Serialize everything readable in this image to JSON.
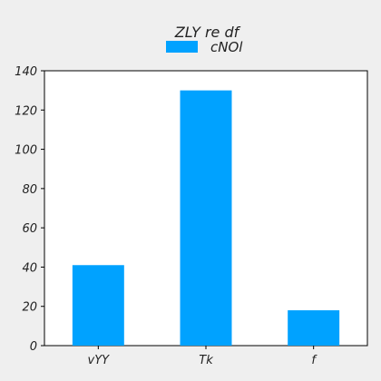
{
  "chart_data": {
    "type": "bar",
    "title": "ZLY re df",
    "categories": [
      "vYY",
      "Tk",
      "f"
    ],
    "series": [
      {
        "name": "cNOl",
        "values": [
          41,
          130,
          18
        ],
        "color": "#00a2ff"
      }
    ],
    "xlabel": "",
    "ylabel": "",
    "ylim": [
      0,
      140
    ],
    "yticks": [
      0,
      20,
      40,
      60,
      80,
      100,
      120,
      140
    ],
    "grid": false,
    "legend_position": "top-center"
  }
}
